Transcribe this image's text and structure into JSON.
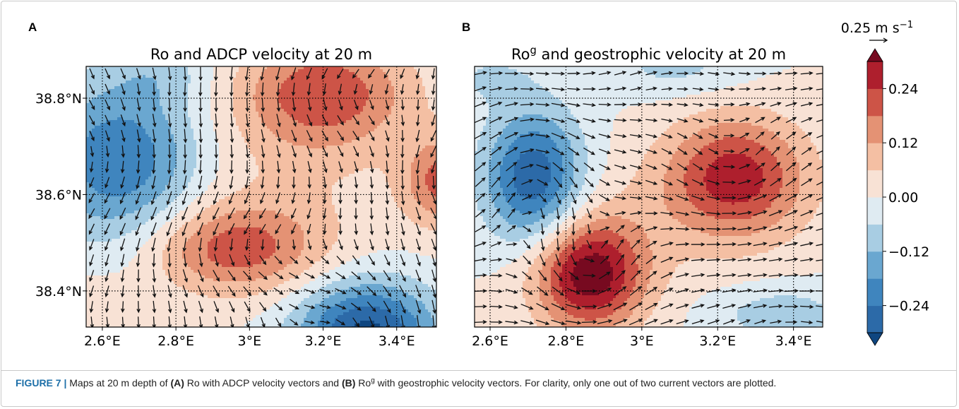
{
  "figure": {
    "panels": [
      {
        "letter": "A",
        "title": [
          {
            "text": "Ro and ADCP velocity at 20 m"
          }
        ],
        "xlim": [
          2.556,
          3.508
        ],
        "ylim": [
          38.325,
          38.866
        ],
        "xticks": [
          {
            "value": 2.6,
            "label": "2.6°E"
          },
          {
            "value": 2.8,
            "label": "2.8°E"
          },
          {
            "value": 3.0,
            "label": "3°E"
          },
          {
            "value": 3.2,
            "label": "3.2°E"
          },
          {
            "value": 3.4,
            "label": "3.4°E"
          }
        ],
        "yticks": [
          {
            "value": 38.4,
            "label": "38.4°N"
          },
          {
            "value": 38.6,
            "label": "38.6°N"
          },
          {
            "value": 38.8,
            "label": "38.8°N"
          }
        ]
      },
      {
        "letter": "B",
        "title": [
          {
            "text": "Ro"
          },
          {
            "text": "g",
            "sup": true
          },
          {
            "text": " and geostrophic velocity at 20 m"
          }
        ],
        "xlim": [
          2.559,
          3.477
        ],
        "ylim": [
          38.325,
          38.866
        ],
        "xticks": [
          {
            "value": 2.6,
            "label": "2.6°E"
          },
          {
            "value": 2.8,
            "label": "2.8°E"
          },
          {
            "value": 3.0,
            "label": "3°E"
          },
          {
            "value": 3.2,
            "label": "3.2°E"
          },
          {
            "value": 3.4,
            "label": "3.4°E"
          }
        ],
        "yticks": [
          {
            "value": 38.4,
            "label": "38.4°N"
          },
          {
            "value": 38.6,
            "label": "38.6°N"
          },
          {
            "value": 38.8,
            "label": "38.8°N"
          }
        ]
      }
    ],
    "colorbar": {
      "scale_label": [
        {
          "text": "0.25 m s"
        },
        {
          "text": "−1",
          "sup": true
        }
      ],
      "levels": [
        -0.3,
        -0.24,
        -0.18,
        -0.12,
        -0.06,
        0.0,
        0.06,
        0.12,
        0.18,
        0.24,
        0.3
      ],
      "colors": [
        "#2c6aa8",
        "#3f85be",
        "#6aa7d0",
        "#a8cde3",
        "#dfebf2",
        "#f8e2d5",
        "#f4bfa3",
        "#e49274",
        "#cd5447",
        "#ae1f2d"
      ],
      "extend_colors": [
        "#0f4680",
        "#770a20"
      ],
      "ticks": [
        {
          "value": -0.24,
          "label": "−0.24"
        },
        {
          "value": -0.12,
          "label": "−0.12"
        },
        {
          "value": 0.0,
          "label": "0.00"
        },
        {
          "value": 0.12,
          "label": "0.12"
        },
        {
          "value": 0.24,
          "label": "0.24"
        }
      ]
    }
  },
  "caption": [
    {
      "text": "FIGURE 7 |",
      "style": "label"
    },
    {
      "text": " Maps at 20 m depth of "
    },
    {
      "text": "(A)",
      "style": "bold"
    },
    {
      "text": " Ro with ADCP velocity vectors and "
    },
    {
      "text": "(B)",
      "style": "bold"
    },
    {
      "text": " Ro"
    },
    {
      "text": "g",
      "style": "sup"
    },
    {
      "text": " with geostrophic velocity vectors. For clarity, only one out of two current vectors are plotted."
    }
  ]
}
